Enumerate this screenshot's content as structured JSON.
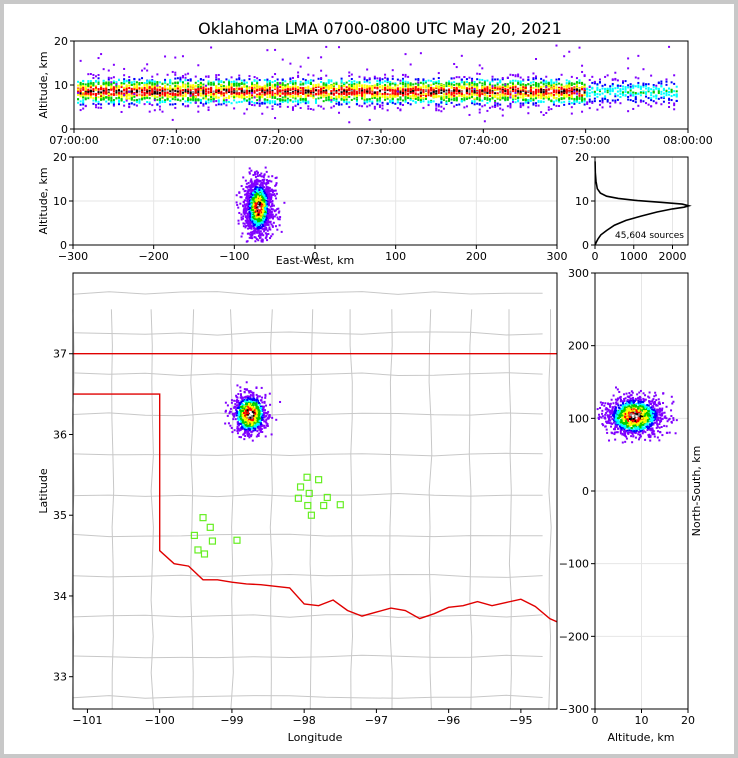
{
  "chart_data": [
    {
      "type": "heatmap",
      "name": "time-altitude",
      "title": "Oklahoma LMA 0700-0800 UTC May 20, 2021",
      "xlabel": "",
      "ylabel": "Altitude, km",
      "xlim": [
        0,
        60
      ],
      "ylim": [
        0,
        20
      ],
      "xticks": [
        0,
        10,
        20,
        30,
        40,
        50,
        60
      ],
      "xtick_labels": [
        "07:00:00",
        "07:10:00",
        "07:20:00",
        "07:30:00",
        "07:40:00",
        "07:50:00",
        "08:00:00"
      ],
      "yticks": [
        0,
        10,
        20
      ],
      "density_center_altitude_km": 8.5,
      "activity_ends_minute": 59
    },
    {
      "type": "heatmap",
      "name": "ew-altitude",
      "xlabel": "East-West, km",
      "ylabel": "Altitude, km",
      "xlim": [
        -300,
        300
      ],
      "ylim": [
        0,
        20
      ],
      "xticks": [
        -300,
        -200,
        -100,
        0,
        100,
        200,
        300
      ],
      "yticks": [
        0,
        10,
        20
      ],
      "cluster_center_km": -70,
      "cluster_altitude_km": 8.5
    },
    {
      "type": "line",
      "name": "altitude-histogram",
      "xlim": [
        0,
        2400
      ],
      "ylim": [
        0,
        20
      ],
      "xticks": [
        0,
        1000,
        2000
      ],
      "yticks": [
        0,
        10,
        20
      ],
      "annotation": "45,604 sources",
      "series": [
        {
          "name": "sources per altitude",
          "points": [
            [
              0,
              0
            ],
            [
              30,
              0.6
            ],
            [
              80,
              1.4
            ],
            [
              150,
              2.3
            ],
            [
              300,
              3.3
            ],
            [
              500,
              4.5
            ],
            [
              800,
              5.6
            ],
            [
              1200,
              6.6
            ],
            [
              1600,
              7.5
            ],
            [
              2000,
              8.2
            ],
            [
              2300,
              8.6
            ],
            [
              2420,
              8.9
            ],
            [
              2250,
              9.3
            ],
            [
              1700,
              9.7
            ],
            [
              1100,
              10.1
            ],
            [
              600,
              10.6
            ],
            [
              300,
              11.1
            ],
            [
              140,
              11.8
            ],
            [
              60,
              12.8
            ],
            [
              25,
              14.5
            ],
            [
              8,
              16.5
            ],
            [
              2,
              19
            ]
          ]
        }
      ]
    },
    {
      "type": "map",
      "name": "plan-view",
      "xlabel": "Longitude",
      "ylabel": "Latitude",
      "xlim": [
        -101.2,
        -94.5
      ],
      "ylim": [
        32.6,
        38.0
      ],
      "xticks": [
        -101,
        -100,
        -99,
        -98,
        -97,
        -96,
        -95
      ],
      "yticks": [
        33,
        34,
        35,
        36,
        37
      ],
      "cluster_center": [
        -98.75,
        36.25
      ],
      "stations": [
        [
          -97.96,
          35.47
        ],
        [
          -97.8,
          35.44
        ],
        [
          -98.05,
          35.35
        ],
        [
          -97.93,
          35.27
        ],
        [
          -97.68,
          35.22
        ],
        [
          -98.08,
          35.21
        ],
        [
          -97.73,
          35.12
        ],
        [
          -97.95,
          35.12
        ],
        [
          -97.5,
          35.13
        ],
        [
          -97.9,
          35.0
        ],
        [
          -99.4,
          34.97
        ],
        [
          -99.3,
          34.85
        ],
        [
          -99.52,
          34.75
        ],
        [
          -99.27,
          34.68
        ],
        [
          -98.93,
          34.69
        ],
        [
          -99.47,
          34.57
        ],
        [
          -99.38,
          34.52
        ]
      ]
    },
    {
      "type": "heatmap",
      "name": "altitude-northsouth",
      "xlabel": "Altitude, km",
      "ylabel": "North-South, km",
      "xlim": [
        0,
        20
      ],
      "ylim": [
        -300,
        300
      ],
      "xticks": [
        0,
        10,
        20
      ],
      "yticks": [
        -300,
        -200,
        -100,
        0,
        100,
        200,
        300
      ],
      "cluster_ns_km": 103,
      "cluster_altitude_km": 8.5
    }
  ]
}
